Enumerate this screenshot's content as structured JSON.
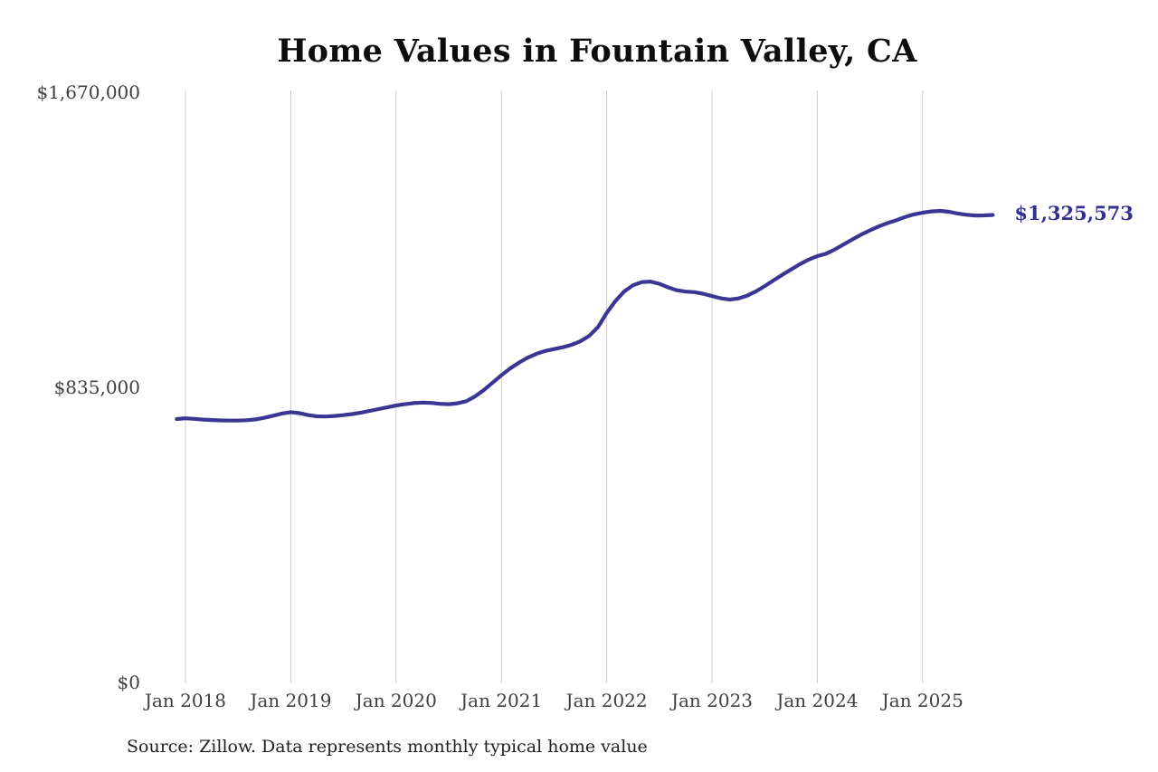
{
  "title": "Home Values in Fountain Valley, CA",
  "source_note": "Source: Zillow. Data represents monthly typical home value",
  "colors": {
    "line": "#3b3594",
    "accent_label": "#32308f",
    "gridline": "#cccccc",
    "axis_text": "#3f3f3f",
    "title_text": "#0d0d0d",
    "source_text": "#1f1f1f",
    "background": "#ffffff"
  },
  "chart_data": {
    "type": "line",
    "title": "Home Values in Fountain Valley, CA",
    "xlabel": "",
    "ylabel": "",
    "ylim": [
      0,
      1670000
    ],
    "grid": "vertical-only",
    "legend": "none",
    "y_ticks": [
      {
        "value": 0,
        "label": "$0"
      },
      {
        "value": 835000,
        "label": "$835,000"
      },
      {
        "value": 1670000,
        "label": "$1,670,000"
      }
    ],
    "x_ticks": [
      {
        "date": "2018-01",
        "label": "Jan 2018"
      },
      {
        "date": "2019-01",
        "label": "Jan 2019"
      },
      {
        "date": "2020-01",
        "label": "Jan 2020"
      },
      {
        "date": "2021-01",
        "label": "Jan 2021"
      },
      {
        "date": "2022-01",
        "label": "Jan 2022"
      },
      {
        "date": "2023-01",
        "label": "Jan 2023"
      },
      {
        "date": "2024-01",
        "label": "Jan 2024"
      },
      {
        "date": "2025-01",
        "label": "Jan 2025"
      }
    ],
    "end_annotation": {
      "text": "$1,325,573",
      "value": 1325573,
      "date": "2025-09"
    },
    "series": [
      {
        "name": "Monthly typical home value",
        "color": "#3b3594",
        "points": [
          [
            "2017-12",
            748000
          ],
          [
            "2018-01",
            750000
          ],
          [
            "2018-02",
            748500
          ],
          [
            "2018-03",
            746500
          ],
          [
            "2018-04",
            745000
          ],
          [
            "2018-05",
            744000
          ],
          [
            "2018-06",
            743500
          ],
          [
            "2018-07",
            743500
          ],
          [
            "2018-08",
            744500
          ],
          [
            "2018-09",
            747000
          ],
          [
            "2018-10",
            751500
          ],
          [
            "2018-11",
            757500
          ],
          [
            "2018-12",
            763500
          ],
          [
            "2019-01",
            767500
          ],
          [
            "2019-02",
            764500
          ],
          [
            "2019-03",
            759000
          ],
          [
            "2019-04",
            755500
          ],
          [
            "2019-05",
            755000
          ],
          [
            "2019-06",
            756500
          ],
          [
            "2019-07",
            759000
          ],
          [
            "2019-08",
            762000
          ],
          [
            "2019-09",
            766000
          ],
          [
            "2019-10",
            771000
          ],
          [
            "2019-11",
            776000
          ],
          [
            "2019-12",
            781000
          ],
          [
            "2020-01",
            786000
          ],
          [
            "2020-02",
            790000
          ],
          [
            "2020-03",
            793000
          ],
          [
            "2020-04",
            794500
          ],
          [
            "2020-05",
            793500
          ],
          [
            "2020-06",
            791000
          ],
          [
            "2020-07",
            790000
          ],
          [
            "2020-08",
            792500
          ],
          [
            "2020-09",
            798500
          ],
          [
            "2020-10",
            812000
          ],
          [
            "2020-11",
            830000
          ],
          [
            "2020-12",
            851000
          ],
          [
            "2021-01",
            872000
          ],
          [
            "2021-02",
            891000
          ],
          [
            "2021-03",
            907500
          ],
          [
            "2021-04",
            921500
          ],
          [
            "2021-05",
            932500
          ],
          [
            "2021-06",
            940500
          ],
          [
            "2021-07",
            946000
          ],
          [
            "2021-08",
            951000
          ],
          [
            "2021-09",
            958000
          ],
          [
            "2021-10",
            968000
          ],
          [
            "2021-11",
            983000
          ],
          [
            "2021-12",
            1008000
          ],
          [
            "2022-01",
            1048000
          ],
          [
            "2022-02",
            1082000
          ],
          [
            "2022-03",
            1109000
          ],
          [
            "2022-04",
            1126500
          ],
          [
            "2022-05",
            1135500
          ],
          [
            "2022-06",
            1137000
          ],
          [
            "2022-07",
            1130500
          ],
          [
            "2022-08",
            1120500
          ],
          [
            "2022-09",
            1112500
          ],
          [
            "2022-10",
            1108500
          ],
          [
            "2022-11",
            1107000
          ],
          [
            "2022-12",
            1102500
          ],
          [
            "2023-01",
            1096000
          ],
          [
            "2023-02",
            1089500
          ],
          [
            "2023-03",
            1086000
          ],
          [
            "2023-04",
            1089000
          ],
          [
            "2023-05",
            1097000
          ],
          [
            "2023-06",
            1109000
          ],
          [
            "2023-07",
            1124000
          ],
          [
            "2023-08",
            1140000
          ],
          [
            "2023-09",
            1156000
          ],
          [
            "2023-10",
            1171000
          ],
          [
            "2023-11",
            1186000
          ],
          [
            "2023-12",
            1199000
          ],
          [
            "2024-01",
            1209000
          ],
          [
            "2024-02",
            1216000
          ],
          [
            "2024-03",
            1228000
          ],
          [
            "2024-04",
            1242000
          ],
          [
            "2024-05",
            1256000
          ],
          [
            "2024-06",
            1270000
          ],
          [
            "2024-07",
            1282000
          ],
          [
            "2024-08",
            1293000
          ],
          [
            "2024-09",
            1302500
          ],
          [
            "2024-10",
            1310500
          ],
          [
            "2024-11",
            1319500
          ],
          [
            "2024-12",
            1327000
          ],
          [
            "2025-01",
            1332000
          ],
          [
            "2025-02",
            1335500
          ],
          [
            "2025-03",
            1337000
          ],
          [
            "2025-04",
            1334500
          ],
          [
            "2025-05",
            1329500
          ],
          [
            "2025-06",
            1326000
          ],
          [
            "2025-07",
            1324000
          ],
          [
            "2025-08",
            1324200
          ],
          [
            "2025-09",
            1325573
          ]
        ]
      }
    ]
  }
}
